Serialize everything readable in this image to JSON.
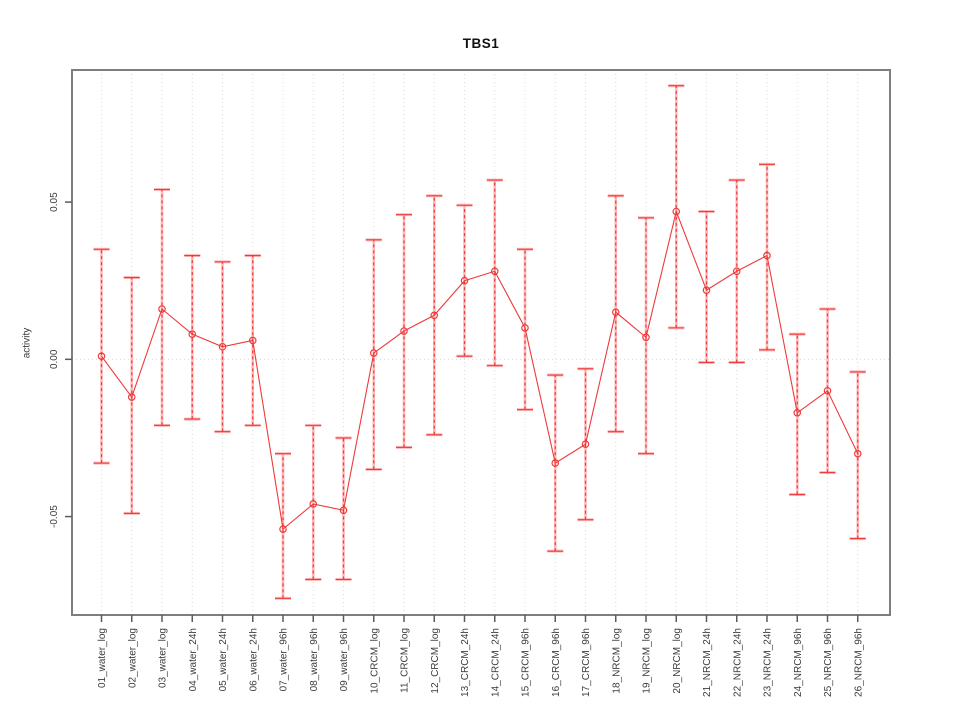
{
  "window": {
    "background": "#ffffff"
  },
  "chart_data": {
    "type": "line",
    "title": "TBS1",
    "xlabel": "",
    "ylabel": "activity",
    "legend": "none",
    "grid": {
      "vertical_dotted_per_category": true,
      "zero_line_dotted": true
    },
    "ylim": [
      -0.0813,
      0.092
    ],
    "yticks": [
      {
        "value": 0.05,
        "label": "0.05"
      },
      {
        "value": 0.0,
        "label": "0.00"
      },
      {
        "value": -0.05,
        "label": "-0.05"
      }
    ],
    "categories": [
      "01_water_log",
      "02_water_log",
      "03_water_log",
      "04_water_24h",
      "05_water_24h",
      "06_water_24h",
      "07_water_96h",
      "08_water_96h",
      "09_water_96h",
      "10_CRCM_log",
      "11_CRCM_log",
      "12_CRCM_log",
      "13_CRCM_24h",
      "14_CRCM_24h",
      "15_CRCM_96h",
      "16_CRCM_96h",
      "17_CRCM_96h",
      "18_NRCM_log",
      "19_NRCM_log",
      "20_NRCM_log",
      "21_NRCM_24h",
      "22_NRCM_24h",
      "23_NRCM_24h",
      "24_NRCM_96h",
      "25_NRCM_96h",
      "26_NRCM_96h"
    ],
    "series": [
      {
        "name": "TBS1 activity",
        "marker": "open-circle",
        "values": [
          0.001,
          -0.012,
          0.016,
          0.008,
          0.004,
          0.006,
          -0.054,
          -0.046,
          -0.048,
          0.002,
          0.009,
          0.014,
          0.025,
          0.028,
          0.01,
          -0.033,
          -0.027,
          0.015,
          0.007,
          0.047,
          0.022,
          0.028,
          0.033,
          -0.017,
          -0.01,
          -0.03
        ],
        "error_low": [
          -0.033,
          -0.049,
          -0.021,
          -0.019,
          -0.023,
          -0.021,
          -0.076,
          -0.07,
          -0.07,
          -0.035,
          -0.028,
          -0.024,
          0.001,
          -0.002,
          -0.016,
          -0.061,
          -0.051,
          -0.023,
          -0.03,
          0.01,
          -0.001,
          -0.001,
          0.003,
          -0.043,
          -0.036,
          -0.057
        ],
        "error_high": [
          0.035,
          0.026,
          0.054,
          0.033,
          0.031,
          0.033,
          -0.03,
          -0.021,
          -0.025,
          0.038,
          0.046,
          0.052,
          0.049,
          0.057,
          0.035,
          -0.005,
          -0.003,
          0.052,
          0.045,
          0.087,
          0.047,
          0.057,
          0.062,
          0.008,
          0.016,
          -0.004
        ]
      }
    ],
    "colors": {
      "point": "#ee3a3a",
      "line": "#ee3a3a",
      "error_bar_primary": "#ee3a3a",
      "error_bar_secondary": "#ffadad",
      "grid": "#d9d9d9",
      "frame": "#7e7e7e",
      "tick": "#5a5a5a",
      "text": "#3c3c3c",
      "title": "#111111",
      "background": "#ffffff"
    }
  }
}
